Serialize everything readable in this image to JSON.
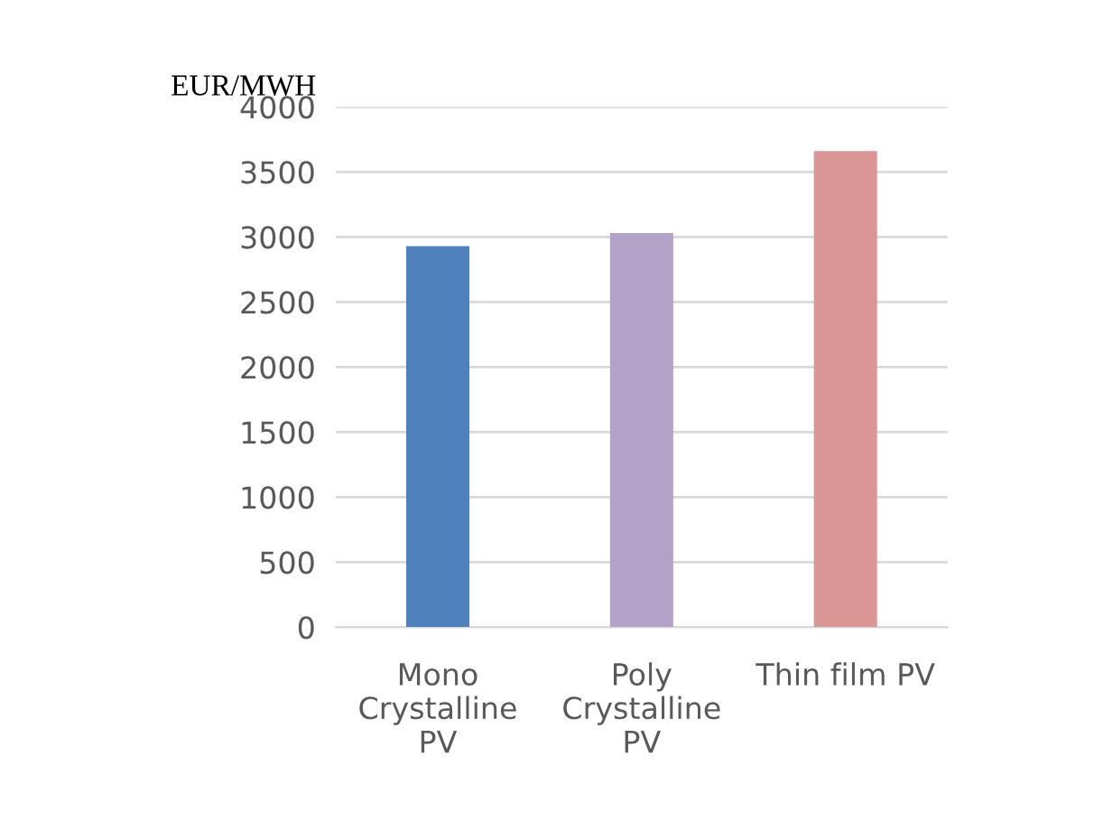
{
  "chart_data": {
    "type": "bar",
    "ylabel": "EUR/MWH",
    "categories": [
      "Mono Crystalline PV",
      "Poly Crystalline PV",
      "Thin film PV"
    ],
    "values": [
      2930,
      3030,
      3660
    ],
    "colors": [
      "#4f81bd",
      "#b2a2c7",
      "#d99694"
    ],
    "ylim": [
      0,
      4000
    ],
    "yticks": [
      0,
      500,
      1000,
      1500,
      2000,
      2500,
      3000,
      3500,
      4000
    ],
    "grid": "y",
    "legend": false
  }
}
